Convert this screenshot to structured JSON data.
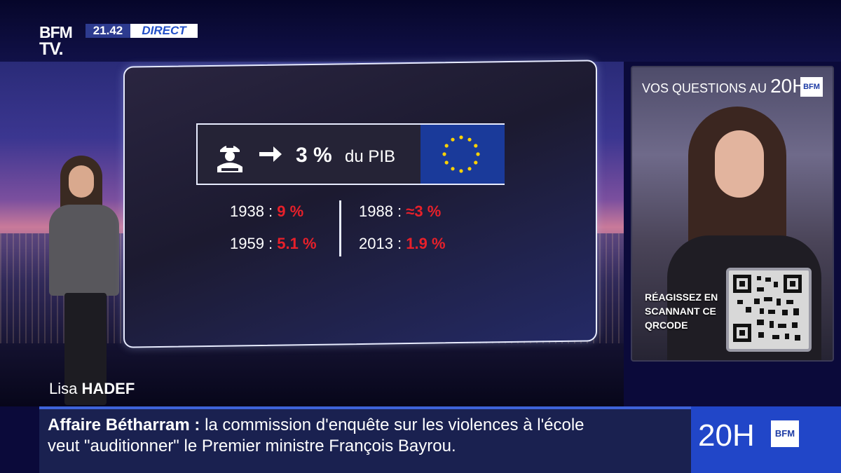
{
  "channel": {
    "logo_line1": "BFM",
    "logo_line2": "TV.",
    "time": "21.42",
    "live_label": "DIRECT"
  },
  "graphic": {
    "stat_value": "3 %",
    "stat_suffix": "du PIB",
    "history": [
      {
        "year": "1938 :",
        "value": "9 %"
      },
      {
        "year": "1959 :",
        "value": "5.1 %"
      },
      {
        "year": "1988 :",
        "value": "≈3 %"
      },
      {
        "year": "2013 :",
        "value": "1.9 %"
      }
    ],
    "value_color": "#e8202a"
  },
  "qr_panel": {
    "title_small": "VOS QUESTIONS AU",
    "title_big": "20H",
    "badge": "BFM",
    "cta_line1": "RÉAGISSEZ EN",
    "cta_line2": "SCANNANT CE",
    "cta_line3": "QRCODE"
  },
  "presenter": {
    "first_name": "Lisa",
    "last_name": "HADEF"
  },
  "ticker": {
    "keyword": "Affaire Bétharram :",
    "line1": "la commission d'enquête sur les violences à l'école",
    "line2": "veut \"auditionner\" le Premier ministre François Bayrou."
  },
  "show_logo": {
    "text": "20H",
    "badge": "BFM"
  }
}
